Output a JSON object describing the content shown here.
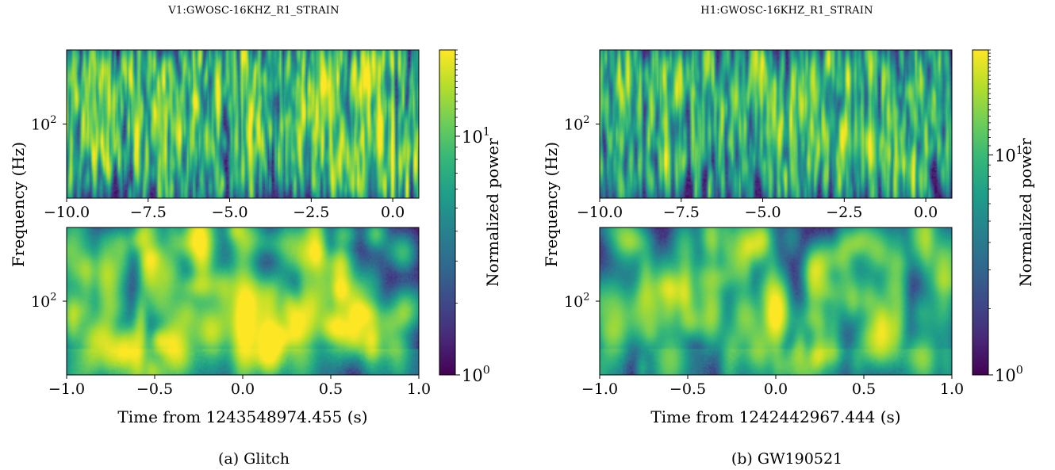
{
  "colors": {
    "viridis": [
      "#440154",
      "#482878",
      "#3e4989",
      "#31688e",
      "#26828e",
      "#1f9e89",
      "#35b779",
      "#6ece58",
      "#b5de2b",
      "#fde725"
    ]
  },
  "chart_data": [
    {
      "type": "heatmap",
      "panel": "a",
      "title": "V1:GWOSC-16KHZ_R1_STRAIN",
      "caption": "(a) Glitch",
      "xlabel": "Time from 1243548974.455 (s)",
      "ylabel": "Frequency (Hz)",
      "colorbar_label": "Normalized power",
      "colorbar_ticks": [
        "10^0",
        "10^1"
      ],
      "colorbar_range": [
        1,
        23
      ],
      "colorscale": "viridis",
      "y_scale": "log",
      "y_tick": "10^2",
      "y_range_hz": [
        20,
        500
      ],
      "subplots": [
        {
          "name": "wide",
          "xlim": [
            -10.0,
            0.8
          ],
          "x_ticks": [
            "−10.0",
            "−7.5",
            "−5.0",
            "−2.5",
            "0.0"
          ],
          "x_tick_values": [
            -10.0,
            -7.5,
            -5.0,
            -2.5,
            0.0
          ],
          "event": {
            "t": 0.0,
            "f_low": 28,
            "f_high": 150,
            "peak_power": 18
          }
        },
        {
          "name": "zoom",
          "xlim": [
            -1.0,
            1.0
          ],
          "x_ticks": [
            "−1.0",
            "−0.5",
            "0.0",
            "0.5",
            "1.0"
          ],
          "x_tick_values": [
            -1.0,
            -0.5,
            0.0,
            0.5,
            1.0
          ],
          "event": {
            "t": 0.0,
            "f_low": 30,
            "f_high": 150,
            "peak_power": 20
          }
        }
      ]
    },
    {
      "type": "heatmap",
      "panel": "b",
      "title": "H1:GWOSC-16KHZ_R1_STRAIN",
      "caption": "(b) GW190521",
      "xlabel": "Time from 1242442967.444 (s)",
      "ylabel": "Frequency (Hz)",
      "colorbar_label": "Normalized power",
      "colorbar_ticks": [
        "10^0",
        "10^1"
      ],
      "colorbar_range": [
        1,
        30
      ],
      "colorscale": "viridis",
      "y_scale": "log",
      "y_tick": "10^2",
      "y_range_hz": [
        20,
        500
      ],
      "subplots": [
        {
          "name": "wide",
          "xlim": [
            -10.0,
            0.8
          ],
          "x_ticks": [
            "−10.0",
            "−7.5",
            "−5.0",
            "−2.5",
            "0.0"
          ],
          "x_tick_values": [
            -10.0,
            -7.5,
            -5.0,
            -2.5,
            0.0
          ],
          "event": {
            "t": 0.0,
            "f_low": 60,
            "f_high": 110,
            "peak_power": 14
          }
        },
        {
          "name": "zoom",
          "xlim": [
            -1.0,
            1.0
          ],
          "x_ticks": [
            "−1.0",
            "−0.5",
            "0.0",
            "0.5",
            "1.0"
          ],
          "x_tick_values": [
            -1.0,
            -0.5,
            0.0,
            0.5,
            1.0
          ],
          "event": {
            "t": 0.0,
            "f_low": 50,
            "f_high": 110,
            "peak_power": 26
          }
        }
      ]
    }
  ]
}
